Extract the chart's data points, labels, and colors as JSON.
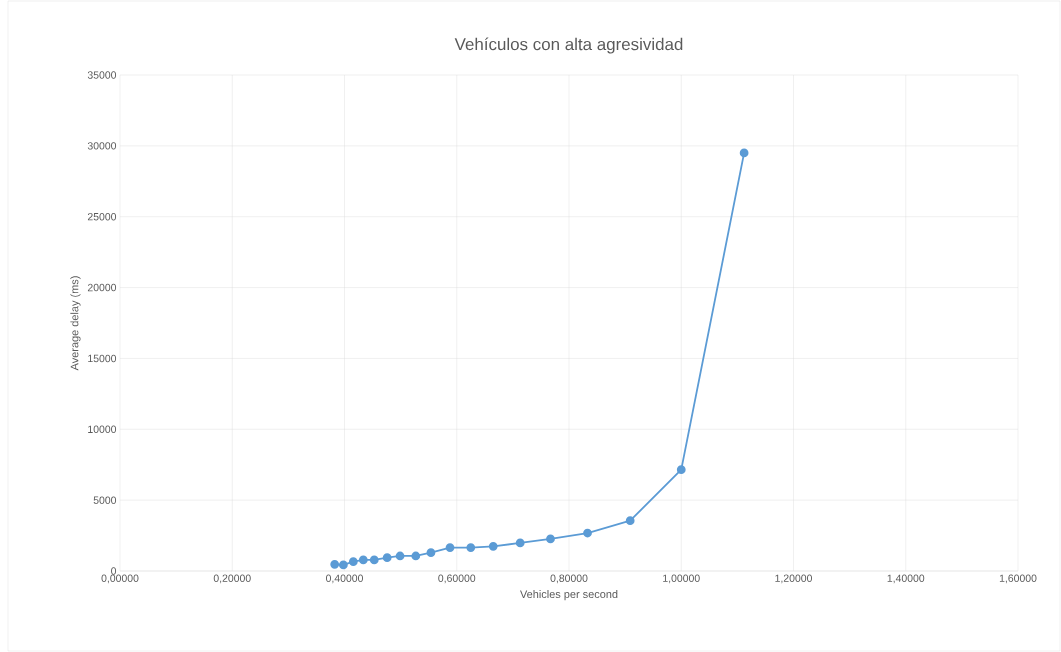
{
  "chart_data": {
    "type": "line",
    "title": "Vehículos con alta agresividad",
    "xlabel": "Vehicles per second",
    "ylabel": "Average delay (ms)",
    "x": [
      0.3825,
      0.398,
      0.4157,
      0.4335,
      0.453,
      0.476,
      0.499,
      0.527,
      0.554,
      0.588,
      0.625,
      0.665,
      0.713,
      0.767,
      0.833,
      0.909,
      1.0,
      1.112
    ],
    "series": [
      {
        "color": "#5b9bd5",
        "values": [
          470,
          430,
          660,
          780,
          780,
          940,
          1060,
          1060,
          1290,
          1650,
          1650,
          1740,
          1980,
          2260,
          2680,
          3550,
          7150,
          29500
        ]
      }
    ],
    "xlim": [
      0,
      1.6
    ],
    "ylim": [
      0,
      35000
    ],
    "xticks": [
      {
        "value": 0,
        "label": "0,00000"
      },
      {
        "value": 0.2,
        "label": "0,20000"
      },
      {
        "value": 0.4,
        "label": "0,40000"
      },
      {
        "value": 0.6,
        "label": "0,60000"
      },
      {
        "value": 0.8,
        "label": "0,80000"
      },
      {
        "value": 1.0,
        "label": "1,00000"
      },
      {
        "value": 1.2,
        "label": "1,20000"
      },
      {
        "value": 1.4,
        "label": "1,40000"
      },
      {
        "value": 1.6,
        "label": "1,60000"
      }
    ],
    "yticks": [
      0,
      5000,
      10000,
      15000,
      20000,
      25000,
      30000,
      35000
    ],
    "grid": true,
    "marker": "circle",
    "line_style": "solid"
  }
}
